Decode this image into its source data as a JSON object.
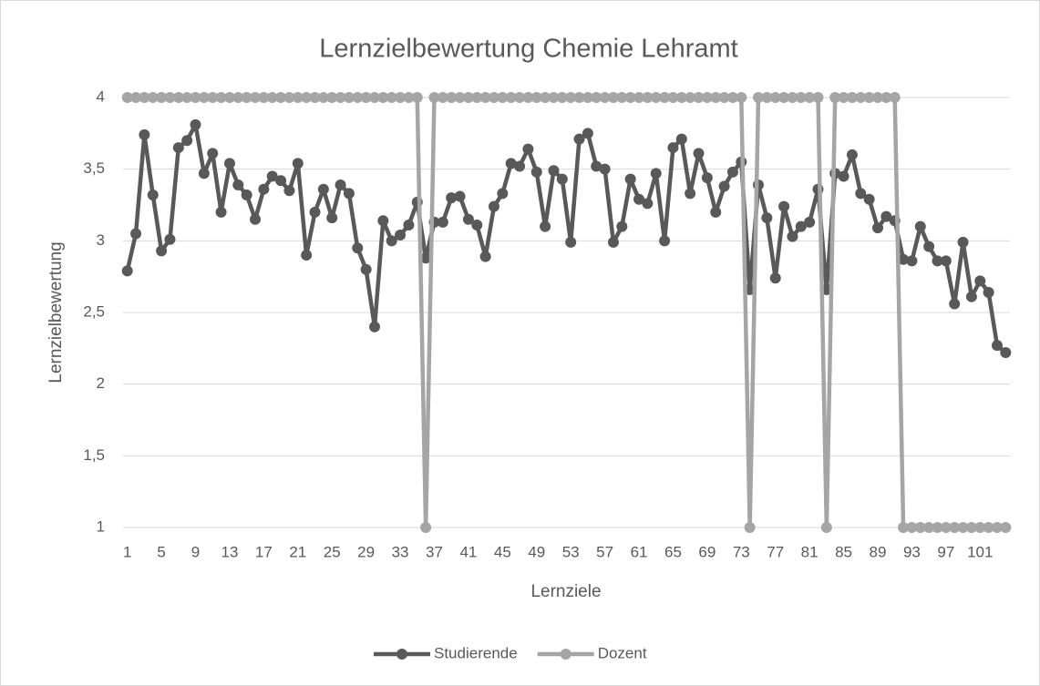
{
  "chart_data": {
    "type": "line",
    "title": "Lernzielbewertung Chemie Lehramt",
    "x_label": "Lernziele",
    "y_label": "Lernzielbewertung",
    "categories": [
      1,
      null,
      null,
      null,
      5,
      null,
      null,
      null,
      9,
      null,
      null,
      null,
      13,
      null,
      null,
      null,
      17,
      null,
      null,
      null,
      21,
      null,
      null,
      null,
      25,
      null,
      null,
      null,
      29,
      null,
      null,
      null,
      33,
      null,
      null,
      null,
      37,
      null,
      null,
      null,
      41,
      null,
      null,
      null,
      45,
      null,
      null,
      null,
      49,
      null,
      null,
      null,
      53,
      null,
      null,
      null,
      57,
      null,
      null,
      null,
      61,
      null,
      null,
      null,
      65,
      null,
      null,
      null,
      69,
      null,
      null,
      null,
      73,
      null,
      null,
      null,
      77,
      null,
      null,
      null,
      81,
      null,
      null,
      null,
      85,
      null,
      null,
      null,
      89,
      null,
      null,
      null,
      93,
      null,
      null,
      null,
      97,
      null,
      null,
      null,
      101,
      null,
      null,
      null
    ],
    "series": [
      {
        "name": "Studierende",
        "color": "#595959",
        "values": [
          2.79,
          3.05,
          3.74,
          3.32,
          2.93,
          3.01,
          3.65,
          3.7,
          3.81,
          3.47,
          3.61,
          3.2,
          3.54,
          3.39,
          3.32,
          3.15,
          3.36,
          3.45,
          3.42,
          3.35,
          3.54,
          2.9,
          3.2,
          3.36,
          3.16,
          3.39,
          3.33,
          2.95,
          2.8,
          2.4,
          3.14,
          3.0,
          3.04,
          3.11,
          3.27,
          2.88,
          3.13,
          3.13,
          3.3,
          3.31,
          3.15,
          3.11,
          2.89,
          3.24,
          3.33,
          3.54,
          3.52,
          3.64,
          3.48,
          3.1,
          3.49,
          3.43,
          2.99,
          3.71,
          3.75,
          3.52,
          3.5,
          2.99,
          3.1,
          3.43,
          3.29,
          3.26,
          3.47,
          3.0,
          3.65,
          3.71,
          3.33,
          3.61,
          3.44,
          3.2,
          3.38,
          3.48,
          3.55,
          2.66,
          3.39,
          3.16,
          2.74,
          3.24,
          3.03,
          3.1,
          3.13,
          3.36,
          2.66,
          3.47,
          3.45,
          3.6,
          3.33,
          3.29,
          3.09,
          3.17,
          3.14,
          2.87,
          2.86,
          3.1,
          2.96,
          2.86,
          2.86,
          2.56,
          2.99,
          2.61,
          2.72,
          2.64,
          2.27,
          2.22
        ]
      },
      {
        "name": "Dozent",
        "color": "#a5a5a5",
        "values": [
          4,
          4,
          4,
          4,
          4,
          4,
          4,
          4,
          4,
          4,
          4,
          4,
          4,
          4,
          4,
          4,
          4,
          4,
          4,
          4,
          4,
          4,
          4,
          4,
          4,
          4,
          4,
          4,
          4,
          4,
          4,
          4,
          4,
          4,
          4,
          1,
          4,
          4,
          4,
          4,
          4,
          4,
          4,
          4,
          4,
          4,
          4,
          4,
          4,
          4,
          4,
          4,
          4,
          4,
          4,
          4,
          4,
          4,
          4,
          4,
          4,
          4,
          4,
          4,
          4,
          4,
          4,
          4,
          4,
          4,
          4,
          4,
          4,
          1,
          4,
          4,
          4,
          4,
          4,
          4,
          4,
          4,
          1,
          4,
          4,
          4,
          4,
          4,
          4,
          4,
          4,
          1,
          1,
          1,
          1,
          1,
          1,
          1,
          1,
          1,
          1,
          1,
          1,
          1
        ]
      }
    ],
    "ylim": [
      1,
      4
    ],
    "yticks": [
      1,
      {
        "value": 1.5,
        "label": "1,5"
      },
      2,
      {
        "value": 2.5,
        "label": "2,5"
      },
      3,
      {
        "value": 3.5,
        "label": "3,5"
      },
      4
    ],
    "grid": true,
    "legend": "bottom"
  }
}
